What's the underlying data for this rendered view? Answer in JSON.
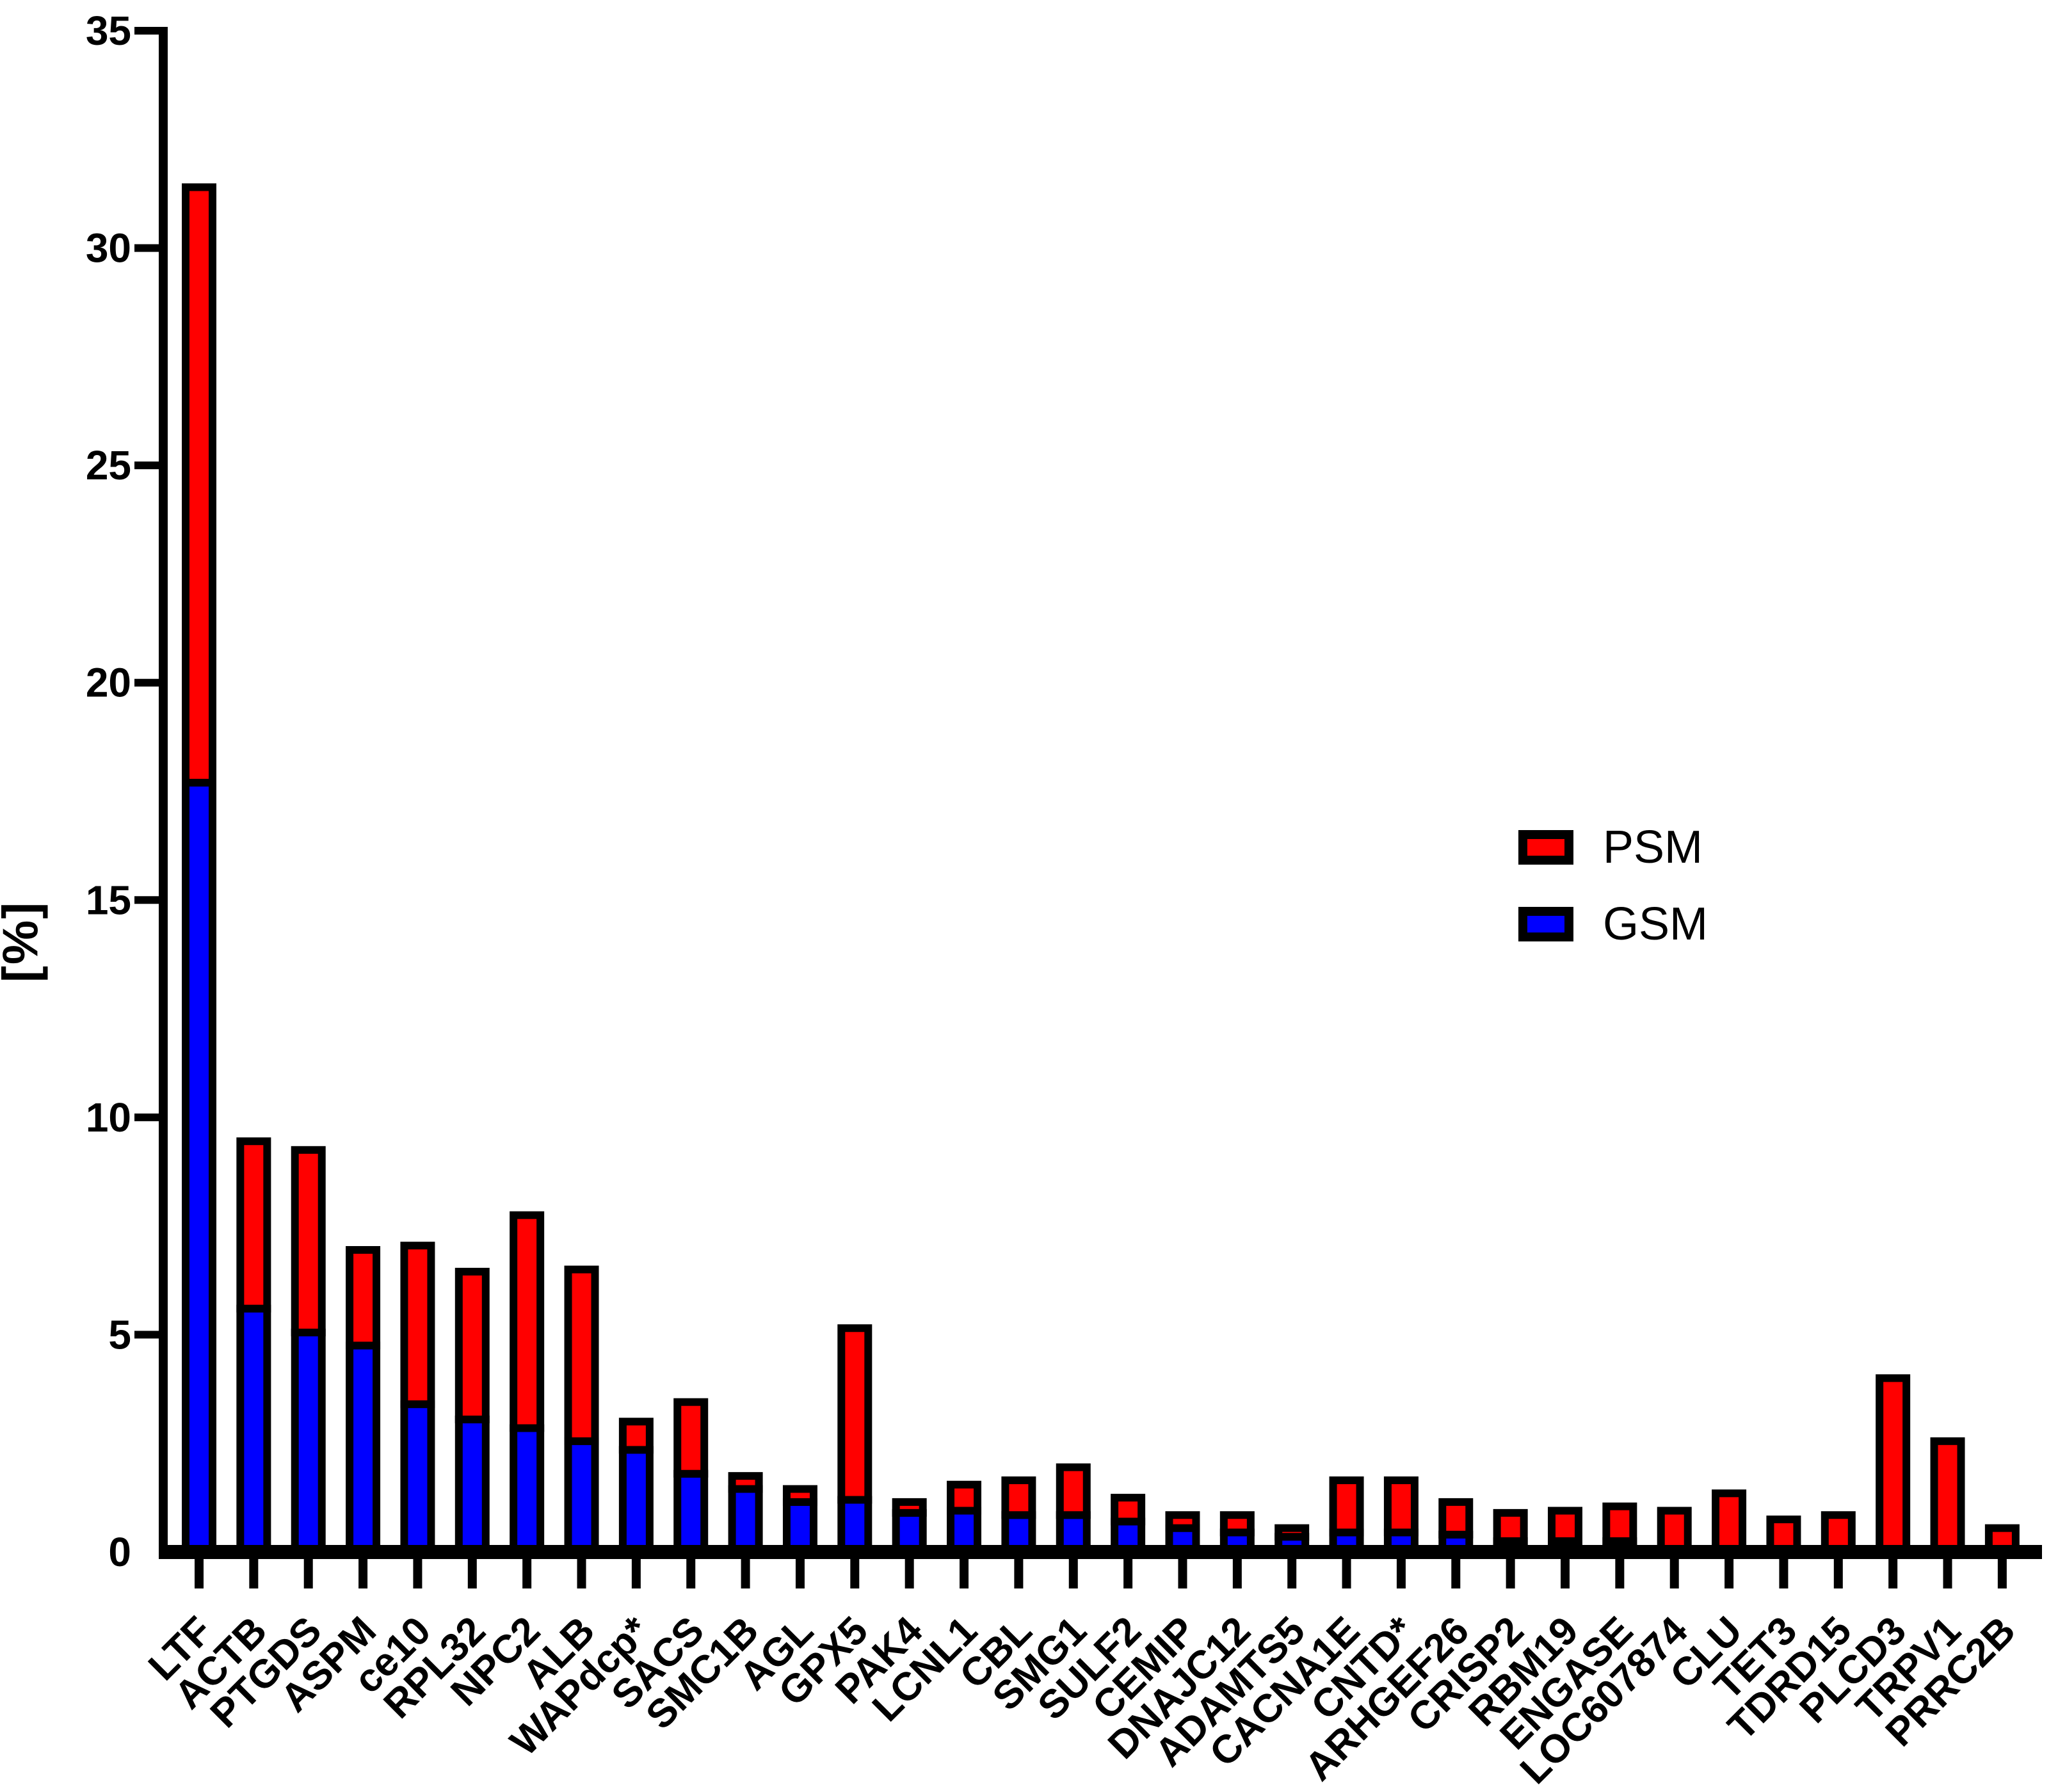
{
  "chart_data": {
    "type": "bar",
    "stacked": true,
    "title": "",
    "xlabel": "",
    "ylabel": "[%]",
    "ylim": [
      0,
      35
    ],
    "yticks": [
      0,
      5,
      10,
      15,
      20,
      25,
      30,
      35
    ],
    "grid": false,
    "legend_position": "center-right",
    "categories": [
      "LTF",
      "ACTB",
      "PTGDS",
      "ASPM",
      "ce10",
      "RPL32",
      "NPC2",
      "ALB",
      "WAPdcp*",
      "SACS",
      "SMC1B",
      "AGL",
      "GPX5",
      "PAK4",
      "LCNL1",
      "CBL",
      "SMG1",
      "SULF2",
      "CEMIP",
      "DNAJC12",
      "ADAMTS5",
      "CACNA1E",
      "CNTD*",
      "ARHGEF26",
      "CRISP2",
      "RBM19",
      "ENGASE",
      "LOC607874",
      "CLU",
      "TET3",
      "TDRD15",
      "PLCD3",
      "TRPV1",
      "PRRC2B"
    ],
    "series": [
      {
        "name": "GSM",
        "color": "#0000ff",
        "values": [
          17.7,
          5.6,
          5.05,
          4.75,
          3.4,
          3.05,
          2.85,
          2.55,
          2.35,
          1.8,
          1.45,
          1.15,
          1.2,
          0.9,
          0.95,
          0.85,
          0.85,
          0.7,
          0.55,
          0.45,
          0.35,
          0.45,
          0.45,
          0.4,
          0.25,
          0.25,
          0.25,
          0,
          0,
          0,
          0,
          0,
          0,
          0
        ]
      },
      {
        "name": "PSM",
        "color": "#ff0000",
        "values": [
          13.7,
          3.85,
          4.2,
          2.2,
          3.65,
          3.4,
          4.9,
          3.95,
          0.65,
          1.65,
          0.3,
          0.3,
          3.95,
          0.25,
          0.6,
          0.8,
          1.1,
          0.55,
          0.3,
          0.4,
          0.2,
          1.2,
          1.2,
          0.75,
          0.65,
          0.7,
          0.8,
          0.95,
          1.35,
          0.75,
          0.85,
          4.0,
          2.55,
          0.55
        ]
      }
    ],
    "bar_outline_color": "#000000"
  },
  "legend": {
    "items": [
      {
        "label": "PSM",
        "color": "#ff0000"
      },
      {
        "label": "GSM",
        "color": "#0000ff"
      }
    ]
  },
  "colors": {
    "psm": "#ff0000",
    "gsm": "#0000ff",
    "axis": "#000000",
    "background": "#ffffff"
  }
}
